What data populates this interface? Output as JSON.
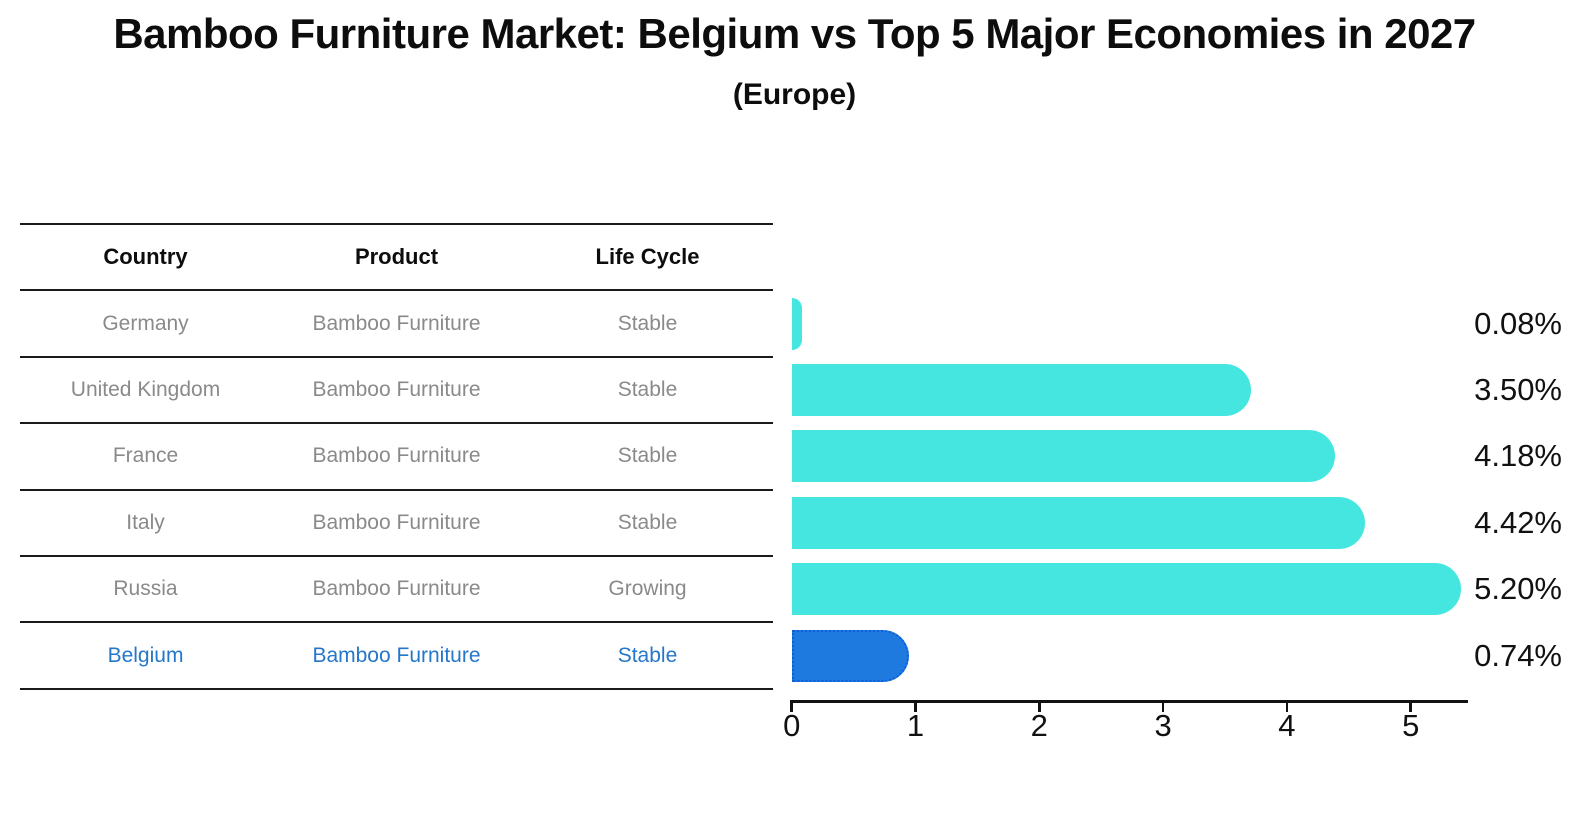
{
  "title": "Bamboo Furniture Market: Belgium vs Top 5 Major Economies in 2027",
  "subtitle": "(Europe)",
  "table": {
    "headers": [
      "Country",
      "Product",
      "Life Cycle"
    ],
    "rows": [
      {
        "country": "Germany",
        "product": "Bamboo Furniture",
        "life_cycle": "Stable",
        "highlighted": false
      },
      {
        "country": "United Kingdom",
        "product": "Bamboo Furniture",
        "life_cycle": "Stable",
        "highlighted": false
      },
      {
        "country": "France",
        "product": "Bamboo Furniture",
        "life_cycle": "Stable",
        "highlighted": false
      },
      {
        "country": "Italy",
        "product": "Bamboo Furniture",
        "life_cycle": "Stable",
        "highlighted": false
      },
      {
        "country": "Russia",
        "product": "Bamboo Furniture",
        "life_cycle": "Growing",
        "highlighted": false
      },
      {
        "country": "Belgium",
        "product": "Bamboo Furniture",
        "life_cycle": "Stable",
        "highlighted": true
      }
    ]
  },
  "chart_data": {
    "type": "bar",
    "orientation": "horizontal",
    "title": "Bamboo Furniture Market: Belgium vs Top 5 Major Economies in 2027 (Europe)",
    "categories": [
      "Germany",
      "United Kingdom",
      "France",
      "Italy",
      "Russia",
      "Belgium"
    ],
    "values": [
      0.08,
      3.5,
      4.18,
      4.42,
      5.2,
      0.74
    ],
    "value_labels": [
      "0.08%",
      "3.50%",
      "4.18%",
      "4.42%",
      "5.20%",
      "0.74%"
    ],
    "xlabel": "",
    "ylabel": "",
    "xlim": [
      0,
      5.5
    ],
    "xticks": [
      0,
      1,
      2,
      3,
      4,
      5
    ],
    "grid": false,
    "legend": false,
    "highlight_index": 5,
    "bar_color": "#46E6E0",
    "highlight_bar_color": "#1F7AE0",
    "highlight_border_color": "#0C5FD6"
  },
  "colors": {
    "background": "#FFFFFF",
    "row_text": "#8A8A8A",
    "highlight_text": "#2577C9",
    "table_line": "#1A1A1A",
    "axis": "#111111"
  }
}
